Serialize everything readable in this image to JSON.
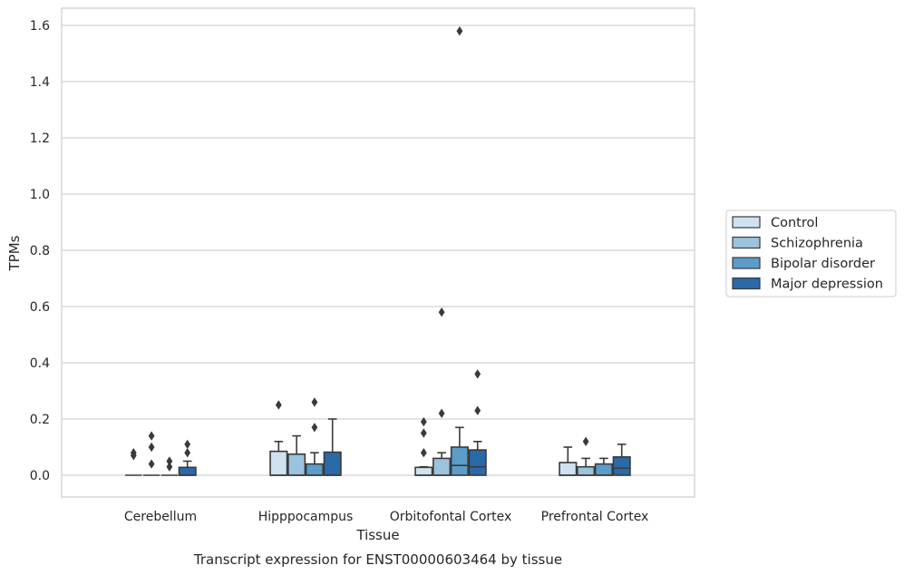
{
  "chart_data": {
    "type": "box",
    "title": "",
    "caption": "Transcript expression for ENST00000603464 by tissue",
    "xlabel": "Tissue",
    "ylabel": "TPMs",
    "ylim": [
      -0.078,
      1.66
    ],
    "yticks": [
      0.0,
      0.2,
      0.4,
      0.6,
      0.8,
      1.0,
      1.2,
      1.4,
      1.6
    ],
    "ytick_labels": [
      "0.0",
      "0.2",
      "0.4",
      "0.6",
      "0.8",
      "1.0",
      "1.2",
      "1.4",
      "1.6"
    ],
    "grid": true,
    "legend_position": "right",
    "categories": [
      "Cerebellum",
      "Hipppocampus",
      "Orbitofontal Cortex",
      "Prefrontal Cortex"
    ],
    "series": [
      {
        "name": "Control",
        "color": "#d0e1f2",
        "boxes": [
          {
            "q1": 0.0,
            "median": 0.0,
            "q3": 0.0,
            "whisker_low": 0.0,
            "whisker_high": 0.0,
            "outliers": [
              0.07,
              0.08
            ]
          },
          {
            "q1": 0.0,
            "median": 0.0,
            "q3": 0.085,
            "whisker_low": 0.0,
            "whisker_high": 0.12,
            "outliers": [
              0.25
            ]
          },
          {
            "q1": 0.0,
            "median": 0.0,
            "q3": 0.028,
            "whisker_low": 0.0,
            "whisker_high": 0.03,
            "outliers": [
              0.08,
              0.15,
              0.19
            ]
          },
          {
            "q1": 0.0,
            "median": 0.0,
            "q3": 0.045,
            "whisker_low": 0.0,
            "whisker_high": 0.1,
            "outliers": []
          }
        ]
      },
      {
        "name": "Schizophrenia",
        "color": "#9bc3dd",
        "boxes": [
          {
            "q1": 0.0,
            "median": 0.0,
            "q3": 0.0,
            "whisker_low": 0.0,
            "whisker_high": 0.0,
            "outliers": [
              0.04,
              0.1,
              0.14
            ]
          },
          {
            "q1": 0.0,
            "median": 0.0,
            "q3": 0.075,
            "whisker_low": 0.0,
            "whisker_high": 0.14,
            "outliers": []
          },
          {
            "q1": 0.0,
            "median": 0.0,
            "q3": 0.06,
            "whisker_low": 0.0,
            "whisker_high": 0.08,
            "outliers": [
              0.22,
              0.58
            ]
          },
          {
            "q1": 0.0,
            "median": 0.0,
            "q3": 0.03,
            "whisker_low": 0.0,
            "whisker_high": 0.06,
            "outliers": [
              0.12
            ]
          }
        ]
      },
      {
        "name": "Bipolar disorder",
        "color": "#5b9cc8",
        "boxes": [
          {
            "q1": 0.0,
            "median": 0.0,
            "q3": 0.0,
            "whisker_low": 0.0,
            "whisker_high": 0.0,
            "outliers": [
              0.03,
              0.05
            ]
          },
          {
            "q1": 0.0,
            "median": 0.0,
            "q3": 0.04,
            "whisker_low": 0.0,
            "whisker_high": 0.08,
            "outliers": [
              0.17,
              0.26
            ]
          },
          {
            "q1": 0.0,
            "median": 0.035,
            "q3": 0.1,
            "whisker_low": 0.0,
            "whisker_high": 0.17,
            "outliers": [
              1.58
            ]
          },
          {
            "q1": 0.0,
            "median": 0.0,
            "q3": 0.04,
            "whisker_low": 0.0,
            "whisker_high": 0.06,
            "outliers": []
          }
        ]
      },
      {
        "name": "Major depression",
        "color": "#2a6aa9",
        "boxes": [
          {
            "q1": 0.0,
            "median": 0.0,
            "q3": 0.028,
            "whisker_low": 0.0,
            "whisker_high": 0.05,
            "outliers": [
              0.08,
              0.11
            ]
          },
          {
            "q1": 0.0,
            "median": 0.0,
            "q3": 0.082,
            "whisker_low": 0.0,
            "whisker_high": 0.2,
            "outliers": []
          },
          {
            "q1": 0.0,
            "median": 0.03,
            "q3": 0.09,
            "whisker_low": 0.0,
            "whisker_high": 0.12,
            "outliers": [
              0.23,
              0.36
            ]
          },
          {
            "q1": 0.0,
            "median": 0.025,
            "q3": 0.065,
            "whisker_low": 0.0,
            "whisker_high": 0.11,
            "outliers": []
          }
        ]
      }
    ]
  }
}
